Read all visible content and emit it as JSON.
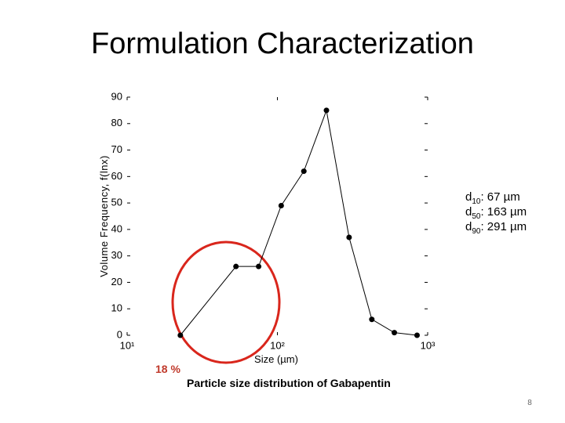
{
  "chart_data": {
    "type": "line",
    "title": "Formulation Characterization",
    "xlabel": "Size (µm)",
    "ylabel": "Volume Frequency, f(lnx)",
    "x": [
      22.6,
      53,
      75,
      106,
      150,
      212,
      300,
      425,
      600,
      850
    ],
    "series": [
      {
        "color": "#000000",
        "values": [
          0,
          26,
          26,
          49,
          62,
          85,
          37,
          6,
          1,
          0
        ]
      }
    ],
    "xscale": "log",
    "xlim": [
      10,
      1000
    ],
    "xticks": [
      {
        "value": 10,
        "label": "10¹"
      },
      {
        "value": 100,
        "label": "10²"
      },
      {
        "value": 1000,
        "label": "10³"
      }
    ],
    "ylim": [
      0,
      90
    ],
    "yticks": [
      0,
      10,
      20,
      30,
      40,
      50,
      60,
      70,
      80,
      90
    ],
    "grid": false,
    "annotations": [
      {
        "symbol": "d",
        "subscript": "10",
        "text": ": 67 µm"
      },
      {
        "symbol": "d",
        "subscript": "50",
        "text": ": 163 µm"
      },
      {
        "symbol": "d",
        "subscript": "90",
        "text": ": 291 µm"
      }
    ],
    "highlight_label": "18 %",
    "caption": "Particle size distribution of Gabapentin"
  },
  "slide_number": "8"
}
